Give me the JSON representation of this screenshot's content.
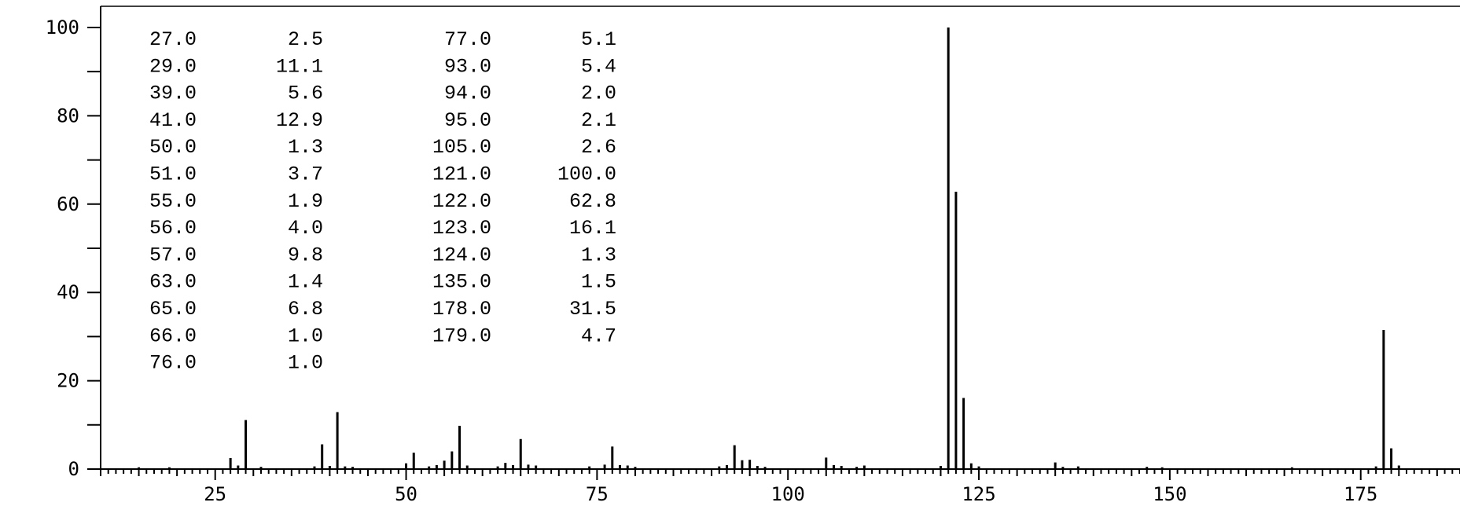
{
  "chart_data": {
    "type": "bar",
    "title": "",
    "xlabel": "",
    "ylabel": "",
    "xlim": [
      10,
      188
    ],
    "ylim": [
      0,
      104.8
    ],
    "x_major_ticks": [
      25,
      50,
      75,
      100,
      125,
      150,
      175
    ],
    "x_minor_step": 1,
    "y_major_ticks": [
      0,
      20,
      40,
      60,
      80,
      100
    ],
    "y_minor_step": 10,
    "grid": false,
    "legend": "none",
    "bar_color": "#000000",
    "peaks_x": [
      27,
      29,
      39,
      41,
      50,
      51,
      55,
      56,
      57,
      63,
      65,
      66,
      76,
      77,
      93,
      94,
      95,
      105,
      121,
      122,
      123,
      124,
      135,
      178,
      179
    ],
    "peaks_y": [
      2.5,
      11.1,
      5.6,
      12.9,
      1.3,
      3.7,
      1.9,
      4.0,
      9.8,
      1.4,
      6.8,
      1.0,
      1.0,
      5.1,
      5.4,
      2.0,
      2.1,
      2.6,
      100.0,
      62.8,
      16.1,
      1.3,
      1.5,
      31.5,
      4.7
    ],
    "minor_x": [
      15,
      19,
      28,
      31,
      38,
      40,
      42,
      43,
      53,
      54,
      58,
      62,
      64,
      67,
      74,
      78,
      79,
      80,
      91,
      92,
      96,
      97,
      106,
      107,
      109,
      110,
      120,
      125,
      136,
      138,
      147,
      149,
      166,
      177,
      180
    ],
    "minor_y": [
      0.4,
      0.4,
      0.8,
      0.5,
      0.6,
      0.7,
      0.6,
      0.5,
      0.6,
      0.9,
      0.8,
      0.6,
      0.9,
      0.8,
      0.6,
      0.9,
      0.8,
      0.5,
      0.6,
      0.9,
      0.7,
      0.5,
      0.9,
      0.7,
      0.5,
      0.8,
      0.7,
      0.6,
      0.5,
      0.6,
      0.5,
      0.4,
      0.4,
      0.6,
      0.8
    ],
    "peak_table": [
      {
        "mz": "27.0",
        "rel": "2.5"
      },
      {
        "mz": "29.0",
        "rel": "11.1"
      },
      {
        "mz": "39.0",
        "rel": "5.6"
      },
      {
        "mz": "41.0",
        "rel": "12.9"
      },
      {
        "mz": "50.0",
        "rel": "1.3"
      },
      {
        "mz": "51.0",
        "rel": "3.7"
      },
      {
        "mz": "55.0",
        "rel": "1.9"
      },
      {
        "mz": "56.0",
        "rel": "4.0"
      },
      {
        "mz": "57.0",
        "rel": "9.8"
      },
      {
        "mz": "63.0",
        "rel": "1.4"
      },
      {
        "mz": "65.0",
        "rel": "6.8"
      },
      {
        "mz": "66.0",
        "rel": "1.0"
      },
      {
        "mz": "76.0",
        "rel": "1.0"
      },
      {
        "mz": "77.0",
        "rel": "5.1"
      },
      {
        "mz": "93.0",
        "rel": "5.4"
      },
      {
        "mz": "94.0",
        "rel": "2.0"
      },
      {
        "mz": "95.0",
        "rel": "2.1"
      },
      {
        "mz": "105.0",
        "rel": "2.6"
      },
      {
        "mz": "121.0",
        "rel": "100.0"
      },
      {
        "mz": "122.0",
        "rel": "62.8"
      },
      {
        "mz": "123.0",
        "rel": "16.1"
      },
      {
        "mz": "124.0",
        "rel": "1.3"
      },
      {
        "mz": "135.0",
        "rel": "1.5"
      },
      {
        "mz": "178.0",
        "rel": "31.5"
      },
      {
        "mz": "179.0",
        "rel": "4.7"
      }
    ],
    "table_rows_per_column": 13
  }
}
